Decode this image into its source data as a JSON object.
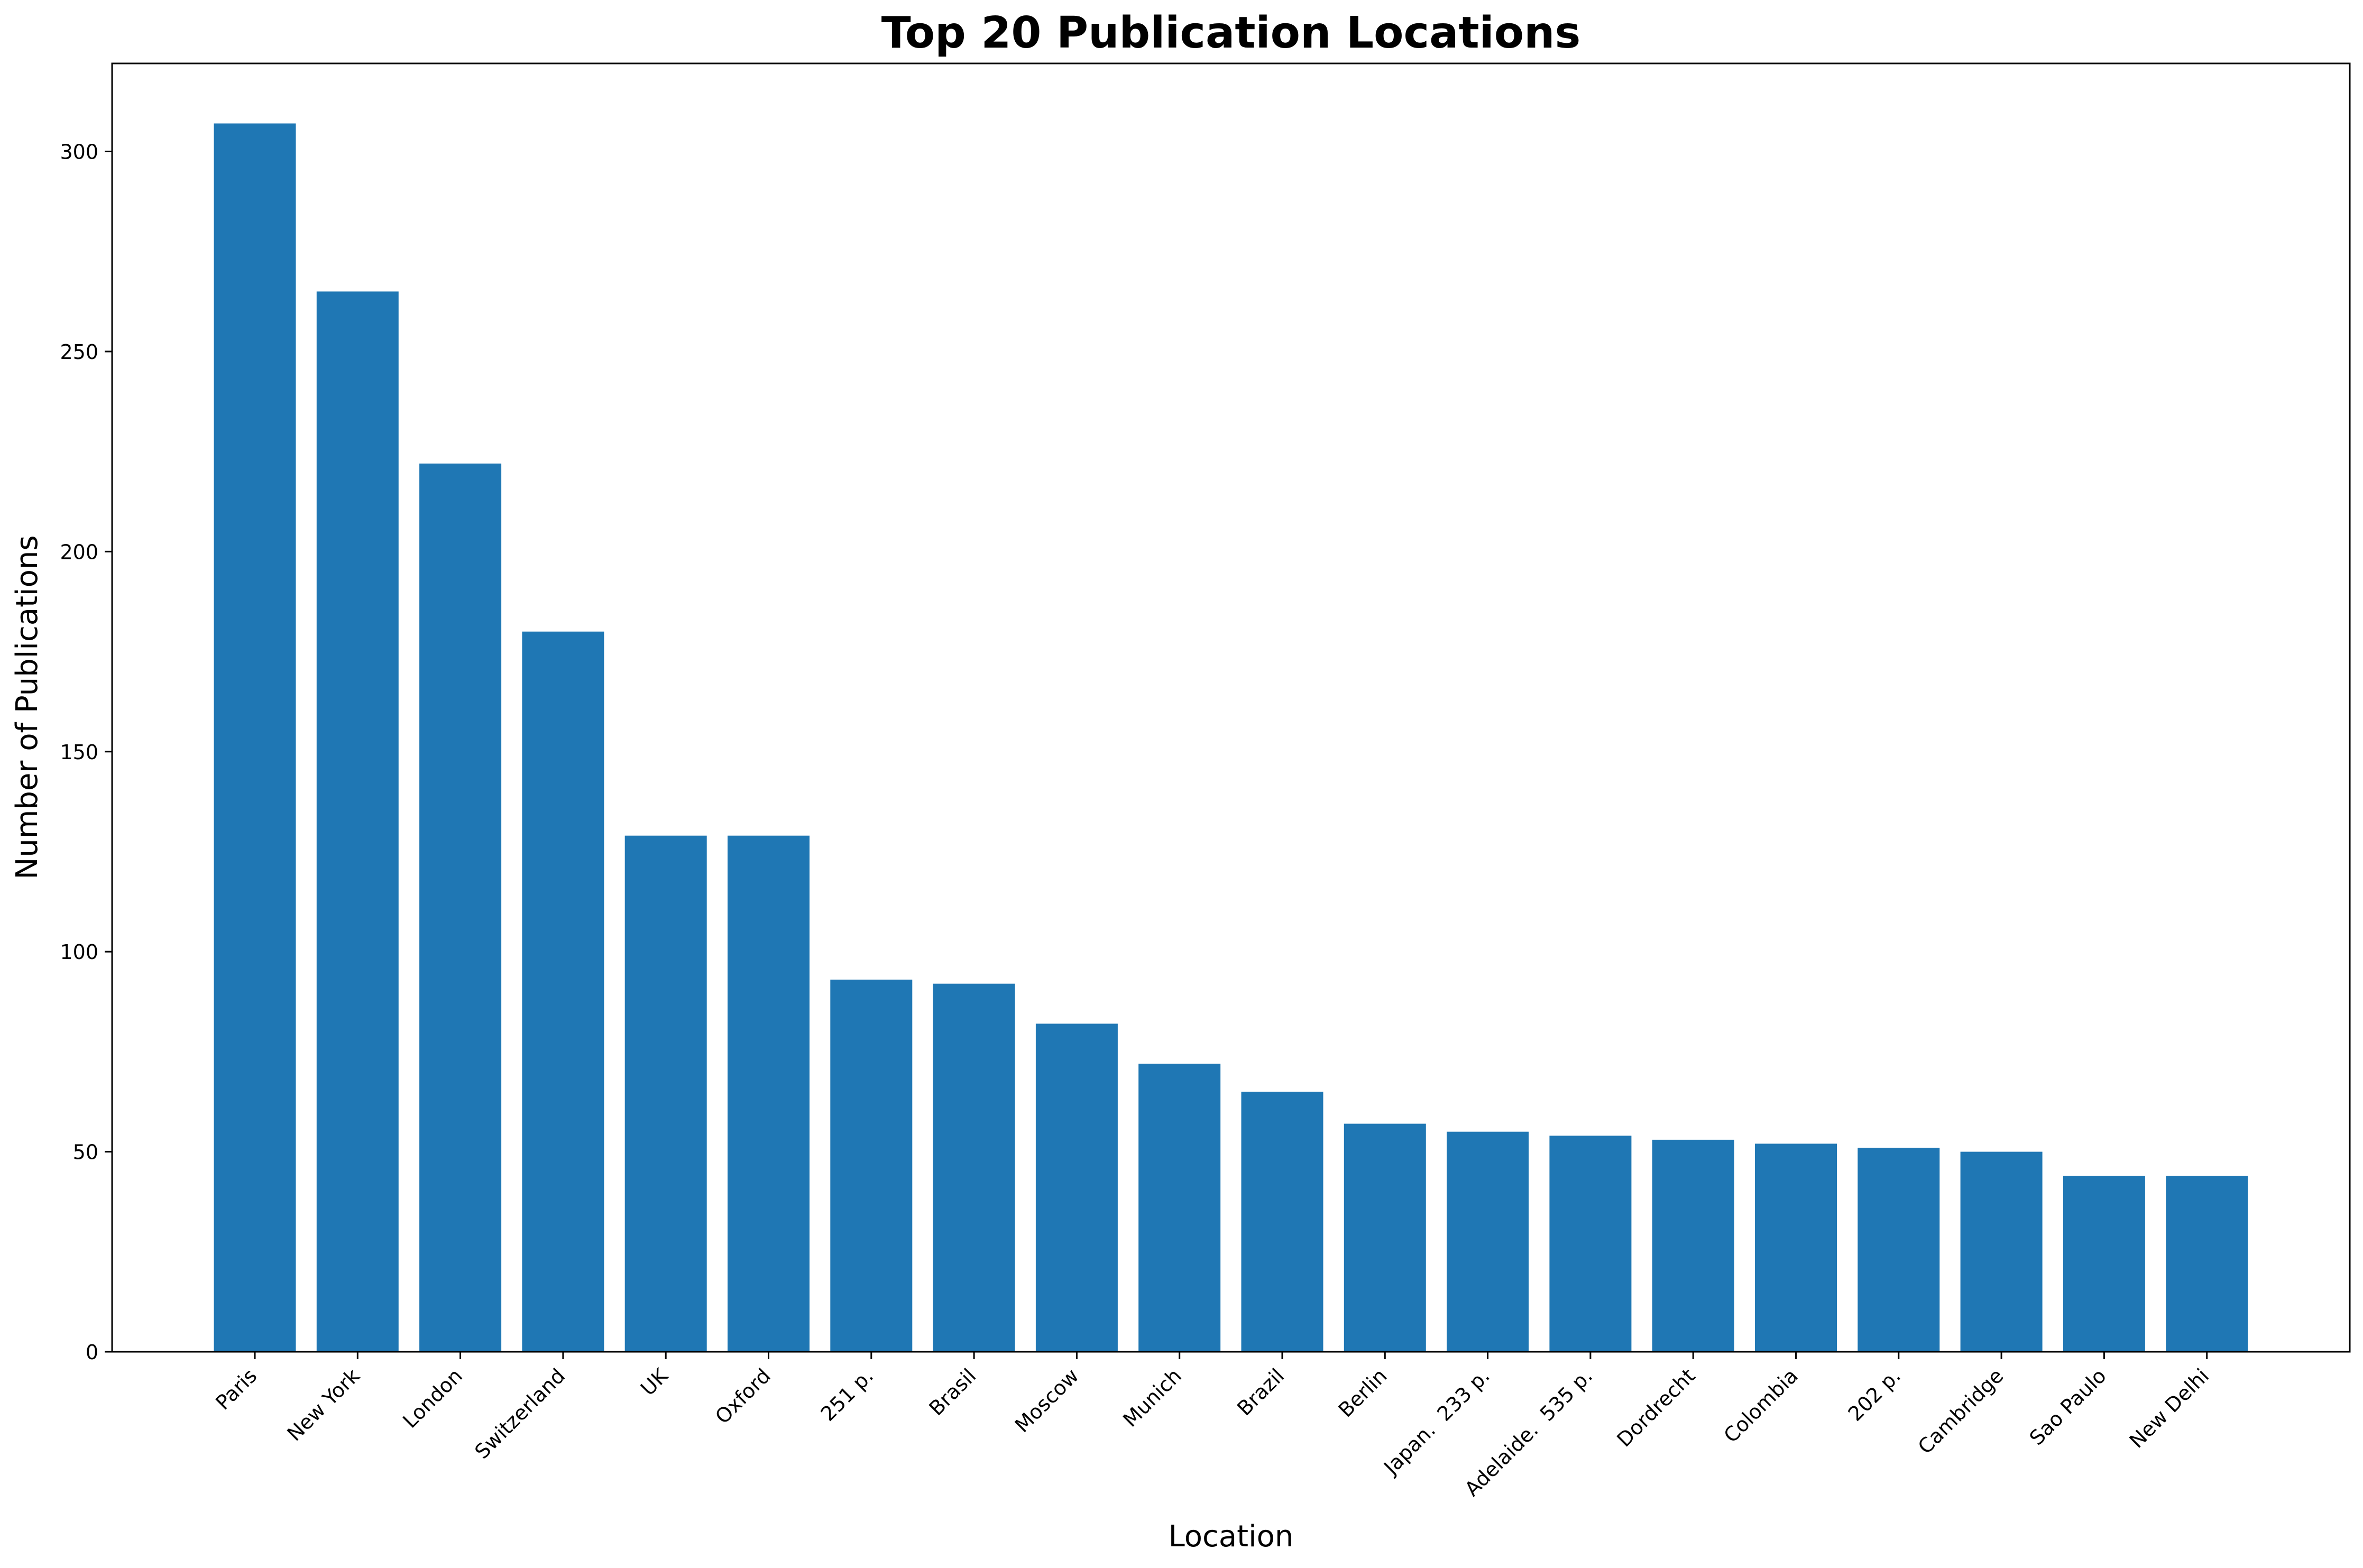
{
  "chart_data": {
    "type": "bar",
    "title": "Top 20 Publication Locations",
    "xlabel": "Location",
    "ylabel": "Number of Publications",
    "categories": [
      "Paris",
      "New York",
      "London",
      "Switzerland",
      "UK",
      "Oxford",
      "251 p.",
      "Brasil",
      "Moscow",
      "Munich",
      "Brazil",
      "Berlin",
      "Japan.  233 p.",
      "Adelaide.  535 p.",
      "Dordrecht",
      "Colombia",
      "202 p.",
      "Cambridge",
      "Sao Paulo",
      "New Delhi"
    ],
    "values": [
      307,
      265,
      222,
      180,
      129,
      129,
      93,
      92,
      82,
      72,
      65,
      57,
      55,
      54,
      53,
      52,
      51,
      50,
      44,
      44
    ],
    "ylim": [
      0,
      322
    ],
    "yticks": [
      0,
      50,
      100,
      150,
      200,
      250,
      300
    ],
    "grid": false,
    "bar_color": "#1f77b4"
  }
}
